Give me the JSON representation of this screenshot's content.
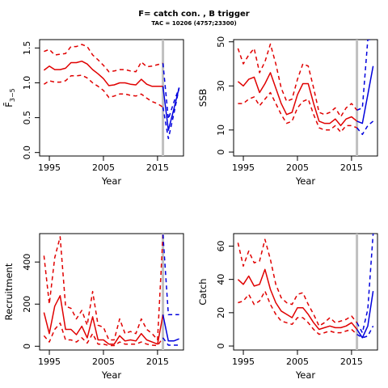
{
  "header": {
    "title": "F= catch con. , B trigger",
    "subtitle": "TAC = 10206 (4757;23300)"
  },
  "style": {
    "historic_color": "#e00000",
    "forecast_color": "#0000dd",
    "vline_color": "#c0c0c0"
  },
  "chart_data": [
    {
      "type": "line",
      "panel": "F",
      "xlabel": "Year",
      "ylabel": "F̄",
      "ylabel_sub": "3−5",
      "xlim": [
        1993.2,
        2019.8
      ],
      "ylim": [
        -0.05,
        1.62
      ],
      "xticks": [
        1995,
        2005,
        2015
      ],
      "yticks": [
        0.0,
        0.5,
        1.0,
        1.5
      ],
      "ytick_labels": [
        "0.0",
        "0.5",
        "1.0",
        "1.5"
      ],
      "vline": 2016,
      "historic": {
        "x": [
          1994,
          1995,
          1996,
          1997,
          1998,
          1999,
          2000,
          2001,
          2002,
          2003,
          2004,
          2005,
          2006,
          2007,
          2008,
          2009,
          2010,
          2011,
          2012,
          2013,
          2014,
          2015,
          2016
        ],
        "est": [
          1.18,
          1.24,
          1.19,
          1.19,
          1.21,
          1.29,
          1.29,
          1.31,
          1.27,
          1.19,
          1.13,
          1.06,
          0.96,
          0.97,
          1.0,
          1.0,
          0.98,
          0.97,
          1.05,
          0.98,
          0.95,
          0.95,
          0.95
        ],
        "upper": [
          1.45,
          1.48,
          1.4,
          1.41,
          1.42,
          1.52,
          1.52,
          1.55,
          1.52,
          1.4,
          1.33,
          1.25,
          1.16,
          1.17,
          1.19,
          1.19,
          1.17,
          1.16,
          1.3,
          1.23,
          1.24,
          1.26,
          1.28
        ],
        "lower": [
          0.98,
          1.03,
          1.01,
          1.01,
          1.03,
          1.1,
          1.1,
          1.11,
          1.07,
          1.0,
          0.95,
          0.89,
          0.79,
          0.81,
          0.84,
          0.84,
          0.82,
          0.81,
          0.84,
          0.78,
          0.73,
          0.7,
          0.65
        ]
      },
      "forecast": {
        "x": [
          2016,
          2017,
          2018,
          2019
        ],
        "est": [
          0.95,
          0.32,
          0.62,
          0.93
        ],
        "upper": [
          1.28,
          0.48,
          0.72,
          0.93
        ],
        "lower": [
          0.65,
          0.2,
          0.55,
          0.93
        ]
      }
    },
    {
      "type": "line",
      "panel": "SSB",
      "xlabel": "Year",
      "ylabel": "SSB",
      "xlim": [
        1993.2,
        2019.8
      ],
      "ylim": [
        -1.8,
        51
      ],
      "xticks": [
        1995,
        2005,
        2015
      ],
      "yticks": [
        0,
        10,
        30,
        50
      ],
      "ytick_labels": [
        "0",
        "10",
        "30",
        "50"
      ],
      "vline": 2016,
      "historic": {
        "x": [
          1994,
          1995,
          1996,
          1997,
          1998,
          1999,
          2000,
          2001,
          2002,
          2003,
          2004,
          2005,
          2006,
          2007,
          2008,
          2009,
          2010,
          2011,
          2012,
          2013,
          2014,
          2015,
          2016
        ],
        "est": [
          32,
          30,
          33,
          34,
          27,
          31,
          36,
          29,
          22,
          17,
          18,
          26,
          31,
          31,
          22,
          14,
          13,
          13,
          15,
          12,
          15,
          16,
          14
        ],
        "upper": [
          47,
          40,
          44,
          47,
          36,
          41,
          49,
          40,
          29,
          23,
          24,
          33,
          40,
          39,
          29,
          18,
          17,
          18,
          20,
          16,
          20,
          22,
          19
        ],
        "lower": [
          22,
          22,
          24,
          25,
          21,
          24,
          27,
          22,
          17,
          13,
          14,
          20,
          23,
          24,
          17,
          11,
          10,
          10,
          12,
          9,
          12,
          12,
          11
        ]
      },
      "forecast": {
        "x": [
          2016,
          2017,
          2018,
          2019
        ],
        "est": [
          14,
          13,
          26,
          39
        ],
        "upper": [
          19,
          20,
          53,
          53
        ],
        "lower": [
          11,
          8,
          12,
          14
        ]
      }
    },
    {
      "type": "line",
      "panel": "Recruitment",
      "xlabel": "Year",
      "ylabel": "Recruitment",
      "xlim": [
        1993.2,
        2019.8
      ],
      "ylim": [
        -18,
        535
      ],
      "xticks": [
        1995,
        2005,
        2015
      ],
      "yticks": [
        0,
        200,
        400
      ],
      "ytick_labels": [
        "0",
        "200",
        "400"
      ],
      "vline": 2016,
      "historic": {
        "x": [
          1994,
          1995,
          1996,
          1997,
          1998,
          1999,
          2000,
          2001,
          2002,
          2003,
          2004,
          2005,
          2006,
          2007,
          2008,
          2009,
          2010,
          2011,
          2012,
          2013,
          2014,
          2015,
          2016
        ],
        "est": [
          160,
          60,
          190,
          240,
          80,
          80,
          55,
          95,
          40,
          140,
          30,
          30,
          10,
          10,
          50,
          25,
          30,
          25,
          60,
          30,
          20,
          10,
          150
        ],
        "upper": [
          430,
          200,
          420,
          520,
          190,
          180,
          130,
          170,
          100,
          260,
          100,
          90,
          30,
          30,
          130,
          60,
          70,
          60,
          130,
          80,
          60,
          30,
          530
        ],
        "lower": [
          50,
          20,
          80,
          110,
          30,
          30,
          20,
          40,
          15,
          60,
          10,
          10,
          3,
          3,
          20,
          10,
          10,
          10,
          20,
          10,
          5,
          3,
          40
        ]
      },
      "forecast": {
        "x": [
          2016,
          2017,
          2018,
          2019
        ],
        "est": [
          150,
          25,
          25,
          35
        ],
        "upper": [
          530,
          150,
          150,
          150
        ],
        "lower": [
          40,
          5,
          5,
          5
        ]
      }
    },
    {
      "type": "line",
      "panel": "Catch",
      "xlabel": "Year",
      "ylabel": "Catch",
      "xlim": [
        1993.2,
        2019.8
      ],
      "ylim": [
        -2.4,
        67.5
      ],
      "xticks": [
        1995,
        2005,
        2015
      ],
      "yticks": [
        0,
        20,
        40,
        60
      ],
      "ytick_labels": [
        "0",
        "20",
        "40",
        "60"
      ],
      "vline": 2016,
      "historic": {
        "x": [
          1994,
          1995,
          1996,
          1997,
          1998,
          1999,
          2000,
          2001,
          2002,
          2003,
          2004,
          2005,
          2006,
          2007,
          2008,
          2009,
          2010,
          2011,
          2012,
          2013,
          2014,
          2015,
          2016
        ],
        "est": [
          40,
          37,
          42,
          36,
          37,
          46,
          34,
          26,
          21,
          19,
          17,
          23,
          23,
          19,
          14,
          10,
          11,
          12,
          11,
          11,
          12,
          14,
          10
        ],
        "upper": [
          62,
          48,
          57,
          50,
          51,
          64,
          52,
          37,
          29,
          26,
          25,
          31,
          32,
          25,
          19,
          12,
          14,
          17,
          14,
          15,
          16,
          18,
          14
        ],
        "lower": [
          26,
          27,
          31,
          25,
          27,
          33,
          25,
          19,
          15,
          14,
          13,
          17,
          17,
          14,
          10,
          7,
          8,
          9,
          8,
          8,
          9,
          10,
          7
        ]
      },
      "forecast": {
        "x": [
          2016,
          2017,
          2018,
          2019
        ],
        "est": [
          10,
          5,
          12,
          33
        ],
        "upper": [
          14,
          8,
          22,
          68
        ],
        "lower": [
          7,
          5,
          6,
          12
        ]
      }
    }
  ]
}
